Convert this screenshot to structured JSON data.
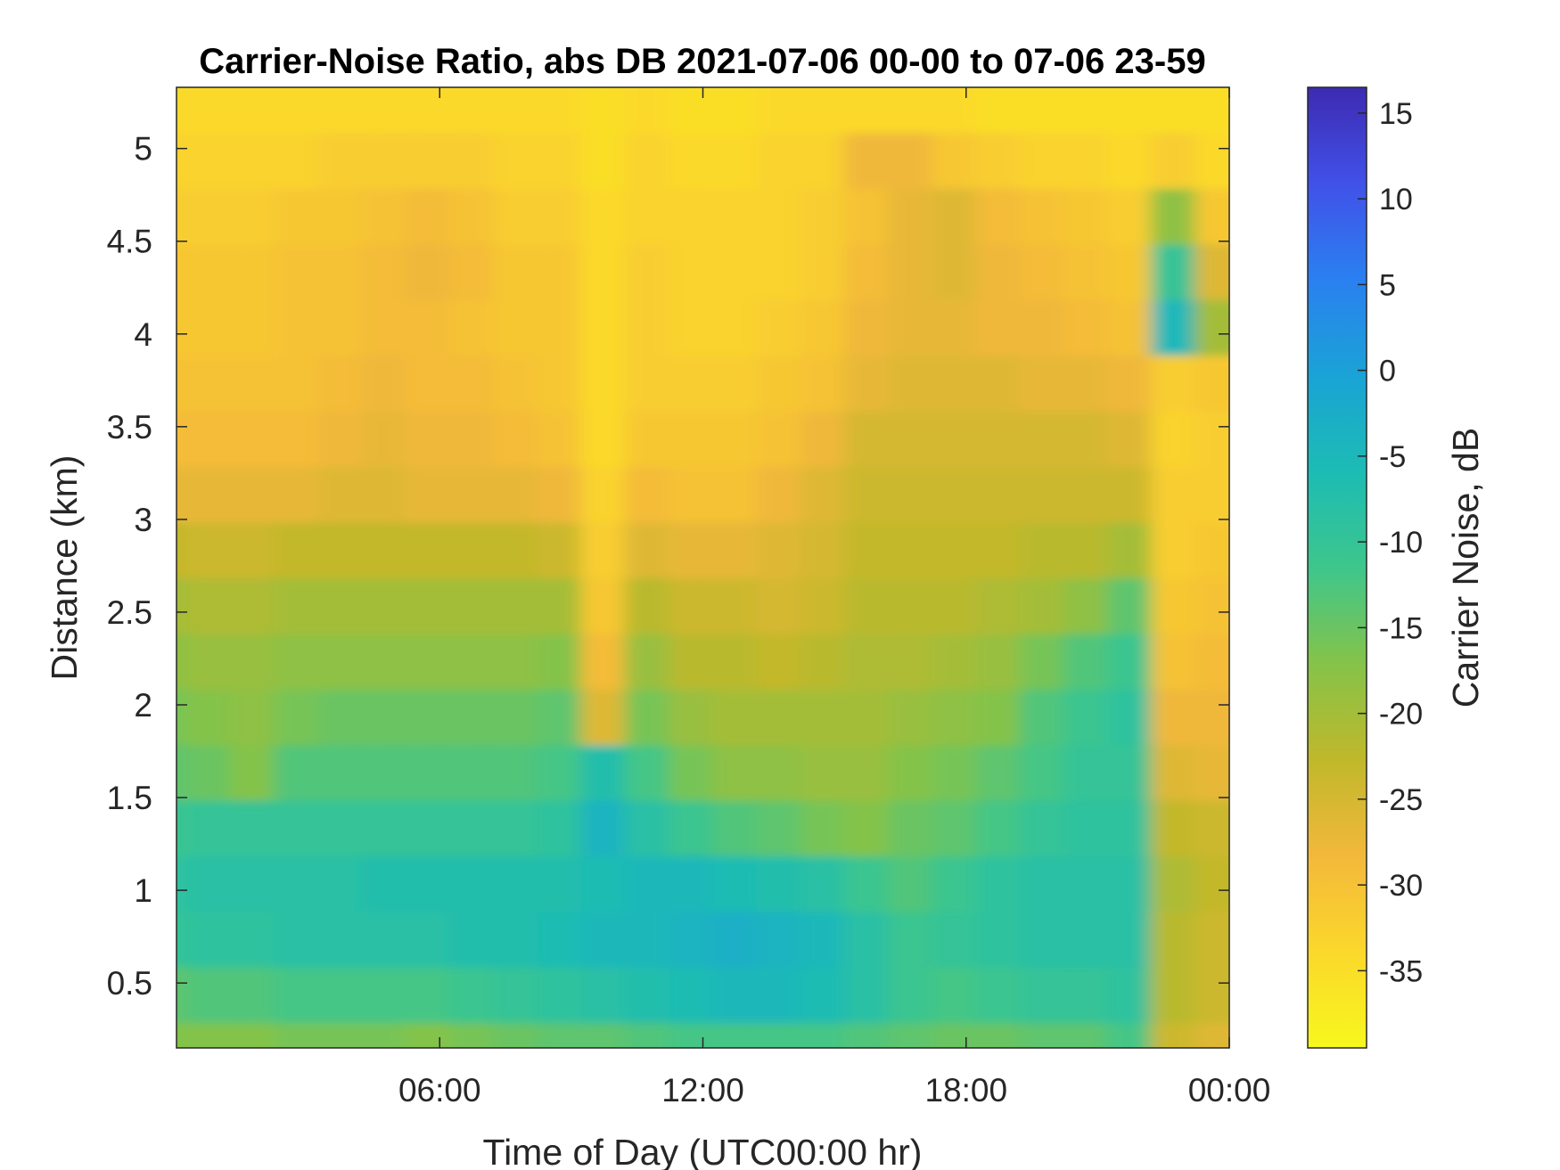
{
  "chart_data": {
    "type": "heatmap",
    "title": "Carrier-Noise Ratio, abs DB 2021-07-06 00-00 to 07-06 23-59",
    "xlabel": "Time of Day (UTC00:00 hr)",
    "ylabel": "Distance (km)",
    "colorbar_label": "Carrier Noise, dB",
    "colormap": "parula (reversed)",
    "x_unit": "hours",
    "xlim": [
      0,
      24
    ],
    "ylim": [
      0.15,
      5.33
    ],
    "clim": [
      -39.5,
      16.5
    ],
    "x_ticks": [
      {
        "value": 6,
        "label": "06:00"
      },
      {
        "value": 12,
        "label": "12:00"
      },
      {
        "value": 18,
        "label": "18:00"
      },
      {
        "value": 24,
        "label": "00:00"
      }
    ],
    "y_ticks": [
      {
        "value": 0.5,
        "label": "0.5"
      },
      {
        "value": 1,
        "label": "1"
      },
      {
        "value": 1.5,
        "label": "1.5"
      },
      {
        "value": 2,
        "label": "2"
      },
      {
        "value": 2.5,
        "label": "2.5"
      },
      {
        "value": 3,
        "label": "3"
      },
      {
        "value": 3.5,
        "label": "3.5"
      },
      {
        "value": 4,
        "label": "4"
      },
      {
        "value": 4.5,
        "label": "4.5"
      },
      {
        "value": 5,
        "label": "5"
      }
    ],
    "colorbar_ticks": [
      {
        "value": 15,
        "label": "15"
      },
      {
        "value": 10,
        "label": "10"
      },
      {
        "value": 5,
        "label": "5"
      },
      {
        "value": 0,
        "label": "0"
      },
      {
        "value": -5,
        "label": "-5"
      },
      {
        "value": -10,
        "label": "-10"
      },
      {
        "value": -15,
        "label": "-15"
      },
      {
        "value": -20,
        "label": "-20"
      },
      {
        "value": -25,
        "label": "-25"
      },
      {
        "value": -30,
        "label": "-30"
      },
      {
        "value": -35,
        "label": "-35"
      }
    ],
    "colormap_stops": [
      "#3d2ab1",
      "#4151e9",
      "#2a80f0",
      "#1aa3d6",
      "#1cbcb4",
      "#3ec68c",
      "#85c349",
      "#c0b82b",
      "#f3b83b",
      "#fbd82b",
      "#f7f71d"
    ],
    "time_hours": [
      0,
      1,
      2,
      3,
      4,
      5,
      6,
      7,
      8,
      9,
      10,
      11,
      12,
      13,
      14,
      15,
      16,
      17,
      18,
      19,
      20,
      21,
      22,
      23,
      24
    ],
    "distance_km": [
      0.2,
      0.5,
      0.8,
      1.1,
      1.4,
      1.7,
      2.0,
      2.3,
      2.6,
      2.9,
      3.2,
      3.5,
      3.8,
      4.1,
      4.4,
      4.7,
      5.0,
      5.3
    ],
    "cnr_db": [
      [
        -17,
        -17,
        -17,
        -16,
        -16,
        -16,
        -17,
        -16,
        -15,
        -14,
        -14,
        -13,
        -12,
        -12,
        -12,
        -12,
        -13,
        -14,
        -15,
        -15,
        -14,
        -14,
        -12,
        -24,
        -26
      ],
      [
        -14,
        -13,
        -13,
        -12,
        -12,
        -12,
        -12,
        -11,
        -10,
        -9,
        -8,
        -7,
        -6,
        -5,
        -5,
        -6,
        -8,
        -11,
        -12,
        -11,
        -10,
        -10,
        -9,
        -22,
        -24
      ],
      [
        -10,
        -9,
        -9,
        -8,
        -8,
        -8,
        -8,
        -7,
        -7,
        -6,
        -5,
        -5,
        -4,
        -3,
        -4,
        -5,
        -8,
        -11,
        -10,
        -9,
        -8,
        -8,
        -8,
        -22,
        -24
      ],
      [
        -9,
        -8,
        -8,
        -8,
        -8,
        -7,
        -7,
        -7,
        -7,
        -7,
        -6,
        -5,
        -5,
        -6,
        -7,
        -8,
        -11,
        -13,
        -11,
        -9,
        -8,
        -8,
        -8,
        -21,
        -23
      ],
      [
        -11,
        -10,
        -10,
        -10,
        -10,
        -10,
        -10,
        -10,
        -10,
        -9,
        -4,
        -8,
        -11,
        -13,
        -14,
        -16,
        -17,
        -15,
        -14,
        -12,
        -10,
        -9,
        -9,
        -23,
        -24
      ],
      [
        -14,
        -15,
        -17,
        -13,
        -13,
        -13,
        -13,
        -13,
        -13,
        -12,
        -7,
        -12,
        -16,
        -18,
        -18,
        -19,
        -19,
        -17,
        -16,
        -14,
        -12,
        -10,
        -10,
        -26,
        -27
      ],
      [
        -16,
        -17,
        -18,
        -16,
        -15,
        -15,
        -15,
        -15,
        -15,
        -14,
        -26,
        -16,
        -19,
        -20,
        -20,
        -20,
        -20,
        -19,
        -18,
        -17,
        -13,
        -11,
        -9,
        -28,
        -28
      ],
      [
        -18,
        -19,
        -19,
        -18,
        -18,
        -18,
        -18,
        -18,
        -18,
        -17,
        -29,
        -19,
        -22,
        -22,
        -23,
        -22,
        -21,
        -21,
        -20,
        -19,
        -16,
        -13,
        -11,
        -30,
        -29
      ],
      [
        -20,
        -21,
        -21,
        -20,
        -20,
        -20,
        -20,
        -20,
        -20,
        -20,
        -31,
        -22,
        -24,
        -24,
        -25,
        -24,
        -22,
        -22,
        -22,
        -21,
        -20,
        -18,
        -14,
        -31,
        -30
      ],
      [
        -23,
        -24,
        -24,
        -23,
        -23,
        -23,
        -23,
        -23,
        -23,
        -24,
        -32,
        -26,
        -27,
        -27,
        -26,
        -25,
        -23,
        -23,
        -23,
        -23,
        -22,
        -22,
        -20,
        -32,
        -31
      ],
      [
        -27,
        -27,
        -27,
        -27,
        -26,
        -26,
        -27,
        -27,
        -27,
        -28,
        -33,
        -29,
        -30,
        -30,
        -28,
        -26,
        -24,
        -24,
        -24,
        -24,
        -24,
        -24,
        -24,
        -32,
        -32
      ],
      [
        -29,
        -29,
        -29,
        -29,
        -28,
        -27,
        -28,
        -28,
        -29,
        -30,
        -34,
        -31,
        -31,
        -31,
        -30,
        -28,
        -25,
        -25,
        -25,
        -25,
        -25,
        -25,
        -26,
        -33,
        -32
      ],
      [
        -30,
        -30,
        -30,
        -30,
        -29,
        -28,
        -29,
        -29,
        -30,
        -31,
        -34,
        -32,
        -32,
        -32,
        -31,
        -30,
        -27,
        -26,
        -26,
        -26,
        -27,
        -27,
        -28,
        -32,
        -31
      ],
      [
        -31,
        -31,
        -31,
        -30,
        -30,
        -29,
        -29,
        -30,
        -31,
        -31,
        -34,
        -32,
        -33,
        -33,
        -32,
        -31,
        -28,
        -27,
        -27,
        -28,
        -28,
        -29,
        -30,
        -5,
        -20
      ],
      [
        -31,
        -31,
        -31,
        -30,
        -30,
        -29,
        -28,
        -29,
        -31,
        -31,
        -34,
        -32,
        -33,
        -33,
        -33,
        -32,
        -29,
        -27,
        -26,
        -28,
        -29,
        -30,
        -31,
        -10,
        -26
      ],
      [
        -32,
        -32,
        -32,
        -31,
        -31,
        -30,
        -29,
        -30,
        -32,
        -32,
        -34,
        -33,
        -33,
        -33,
        -33,
        -32,
        -30,
        -27,
        -26,
        -29,
        -30,
        -31,
        -32,
        -18,
        -31
      ],
      [
        -33,
        -33,
        -33,
        -33,
        -32,
        -32,
        -32,
        -32,
        -33,
        -33,
        -35,
        -33,
        -34,
        -34,
        -33,
        -33,
        -28,
        -28,
        -31,
        -32,
        -33,
        -33,
        -34,
        -32,
        -34
      ],
      [
        -34,
        -34,
        -34,
        -34,
        -34,
        -34,
        -34,
        -34,
        -34,
        -34,
        -35,
        -34,
        -35,
        -35,
        -34,
        -34,
        -34,
        -34,
        -34,
        -35,
        -35,
        -35,
        -35,
        -35,
        -35
      ]
    ]
  }
}
